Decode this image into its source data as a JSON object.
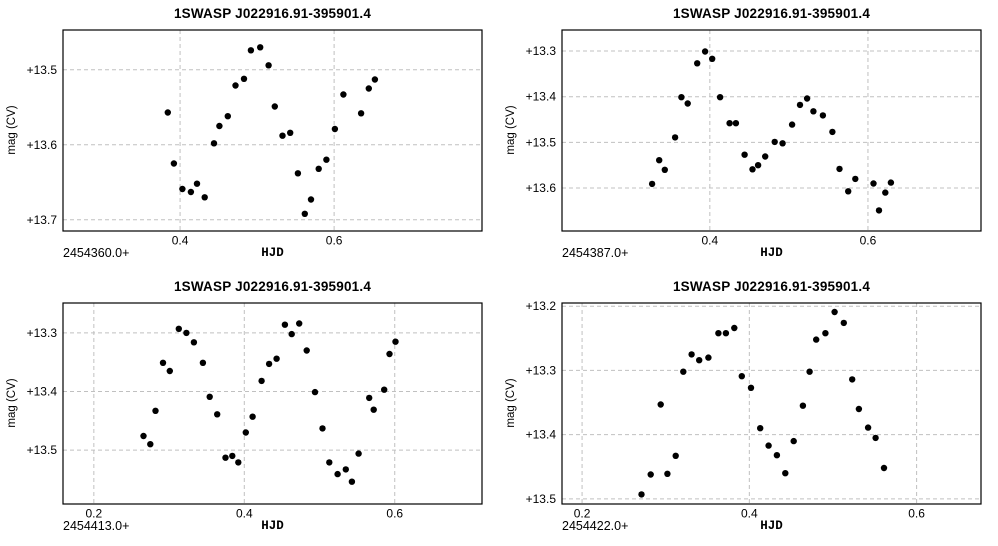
{
  "colors": {
    "background": "#ffffff",
    "point": "#000000",
    "grid": "#c0c0c0",
    "frame": "#000000",
    "text": "#000000"
  },
  "chart_data": [
    {
      "type": "scatter",
      "title": "1SWASP J022916.91-395901.4",
      "xlabel": "HJD",
      "ylabel": "mag (CV)",
      "x_base_label": "2454360.0+",
      "y_inverted": true,
      "xlim": [
        0.248,
        0.792
      ],
      "ylim": [
        13.447,
        13.715
      ],
      "xticks": [
        0.4,
        0.6
      ],
      "xtick_labels": [
        "0.4",
        "0.6"
      ],
      "yticks": [
        13.5,
        13.6,
        13.7
      ],
      "ytick_labels": [
        "+13.5",
        "+13.6",
        "+13.7"
      ],
      "grid": "dashed",
      "points": [
        [
          0.384,
          13.557
        ],
        [
          0.392,
          13.625
        ],
        [
          0.403,
          13.659
        ],
        [
          0.414,
          13.663
        ],
        [
          0.422,
          13.652
        ],
        [
          0.432,
          13.67
        ],
        [
          0.444,
          13.598
        ],
        [
          0.451,
          13.575
        ],
        [
          0.462,
          13.562
        ],
        [
          0.472,
          13.521
        ],
        [
          0.483,
          13.512
        ],
        [
          0.492,
          13.474
        ],
        [
          0.504,
          13.47
        ],
        [
          0.515,
          13.494
        ],
        [
          0.523,
          13.549
        ],
        [
          0.533,
          13.588
        ],
        [
          0.543,
          13.584
        ],
        [
          0.553,
          13.638
        ],
        [
          0.562,
          13.692
        ],
        [
          0.57,
          13.673
        ],
        [
          0.58,
          13.632
        ],
        [
          0.59,
          13.62
        ],
        [
          0.601,
          13.579
        ],
        [
          0.612,
          13.533
        ],
        [
          0.635,
          13.558
        ],
        [
          0.645,
          13.525
        ],
        [
          0.653,
          13.513
        ]
      ]
    },
    {
      "type": "scatter",
      "title": "1SWASP J022916.91-395901.4",
      "xlabel": "HJD",
      "ylabel": "mag (CV)",
      "x_base_label": "2454387.0+",
      "y_inverted": true,
      "xlim": [
        0.213,
        0.743
      ],
      "ylim": [
        13.254,
        13.694
      ],
      "xticks": [
        0.4,
        0.6
      ],
      "xtick_labels": [
        "0.4",
        "0.6"
      ],
      "yticks": [
        13.3,
        13.4,
        13.5,
        13.6
      ],
      "ytick_labels": [
        "+13.3",
        "+13.4",
        "+13.5",
        "+13.6"
      ],
      "grid": "dashed",
      "points": [
        [
          0.327,
          13.591
        ],
        [
          0.336,
          13.539
        ],
        [
          0.343,
          13.56
        ],
        [
          0.356,
          13.489
        ],
        [
          0.364,
          13.401
        ],
        [
          0.372,
          13.415
        ],
        [
          0.384,
          13.327
        ],
        [
          0.394,
          13.301
        ],
        [
          0.403,
          13.317
        ],
        [
          0.413,
          13.401
        ],
        [
          0.425,
          13.458
        ],
        [
          0.433,
          13.458
        ],
        [
          0.444,
          13.527
        ],
        [
          0.454,
          13.559
        ],
        [
          0.461,
          13.55
        ],
        [
          0.47,
          13.531
        ],
        [
          0.482,
          13.499
        ],
        [
          0.492,
          13.502
        ],
        [
          0.504,
          13.461
        ],
        [
          0.514,
          13.418
        ],
        [
          0.523,
          13.404
        ],
        [
          0.531,
          13.432
        ],
        [
          0.543,
          13.441
        ],
        [
          0.555,
          13.477
        ],
        [
          0.564,
          13.558
        ],
        [
          0.575,
          13.607
        ],
        [
          0.584,
          13.58
        ],
        [
          0.607,
          13.59
        ],
        [
          0.614,
          13.649
        ],
        [
          0.622,
          13.61
        ],
        [
          0.629,
          13.588
        ]
      ]
    },
    {
      "type": "scatter",
      "title": "1SWASP J022916.91-395901.4",
      "xlabel": "HJD",
      "ylabel": "mag (CV)",
      "x_base_label": "2454413.0+",
      "y_inverted": true,
      "xlim": [
        0.159,
        0.716
      ],
      "ylim": [
        13.249,
        13.592
      ],
      "xticks": [
        0.2,
        0.4,
        0.6
      ],
      "xtick_labels": [
        "0.2",
        "0.4",
        "0.6"
      ],
      "yticks": [
        13.3,
        13.4,
        13.5
      ],
      "ytick_labels": [
        "+13.3",
        "+13.4",
        "+13.5"
      ],
      "grid": "dashed",
      "points": [
        [
          0.266,
          13.476
        ],
        [
          0.275,
          13.49
        ],
        [
          0.282,
          13.433
        ],
        [
          0.292,
          13.351
        ],
        [
          0.301,
          13.365
        ],
        [
          0.313,
          13.293
        ],
        [
          0.323,
          13.3
        ],
        [
          0.333,
          13.316
        ],
        [
          0.345,
          13.351
        ],
        [
          0.354,
          13.409
        ],
        [
          0.364,
          13.439
        ],
        [
          0.375,
          13.513
        ],
        [
          0.384,
          13.51
        ],
        [
          0.392,
          13.521
        ],
        [
          0.402,
          13.47
        ],
        [
          0.411,
          13.443
        ],
        [
          0.423,
          13.382
        ],
        [
          0.433,
          13.353
        ],
        [
          0.443,
          13.344
        ],
        [
          0.454,
          13.286
        ],
        [
          0.463,
          13.302
        ],
        [
          0.473,
          13.284
        ],
        [
          0.483,
          13.33
        ],
        [
          0.494,
          13.401
        ],
        [
          0.504,
          13.463
        ],
        [
          0.513,
          13.521
        ],
        [
          0.524,
          13.541
        ],
        [
          0.535,
          13.533
        ],
        [
          0.543,
          13.554
        ],
        [
          0.552,
          13.506
        ],
        [
          0.566,
          13.411
        ],
        [
          0.572,
          13.431
        ],
        [
          0.586,
          13.397
        ],
        [
          0.593,
          13.336
        ],
        [
          0.601,
          13.315
        ]
      ]
    },
    {
      "type": "scatter",
      "title": "1SWASP J022916.91-395901.4",
      "xlabel": "HJD",
      "ylabel": "mag (CV)",
      "x_base_label": "2454422.0+",
      "y_inverted": true,
      "xlim": [
        0.176,
        0.677
      ],
      "ylim": [
        13.195,
        13.508
      ],
      "xticks": [
        0.2,
        0.4,
        0.6
      ],
      "xtick_labels": [
        "0.2",
        "0.4",
        "0.6"
      ],
      "yticks": [
        13.2,
        13.3,
        13.4,
        13.5
      ],
      "ytick_labels": [
        "+13.2",
        "+13.3",
        "+13.4",
        "+13.5"
      ],
      "grid": "dashed",
      "points": [
        [
          0.271,
          13.493
        ],
        [
          0.282,
          13.462
        ],
        [
          0.294,
          13.353
        ],
        [
          0.302,
          13.461
        ],
        [
          0.312,
          13.433
        ],
        [
          0.321,
          13.302
        ],
        [
          0.331,
          13.275
        ],
        [
          0.34,
          13.284
        ],
        [
          0.351,
          13.28
        ],
        [
          0.363,
          13.242
        ],
        [
          0.372,
          13.242
        ],
        [
          0.382,
          13.234
        ],
        [
          0.391,
          13.309
        ],
        [
          0.402,
          13.327
        ],
        [
          0.413,
          13.39
        ],
        [
          0.423,
          13.417
        ],
        [
          0.433,
          13.432
        ],
        [
          0.443,
          13.46
        ],
        [
          0.453,
          13.41
        ],
        [
          0.464,
          13.355
        ],
        [
          0.472,
          13.302
        ],
        [
          0.48,
          13.252
        ],
        [
          0.491,
          13.242
        ],
        [
          0.502,
          13.209
        ],
        [
          0.513,
          13.226
        ],
        [
          0.523,
          13.314
        ],
        [
          0.531,
          13.36
        ],
        [
          0.542,
          13.389
        ],
        [
          0.551,
          13.405
        ],
        [
          0.561,
          13.452
        ]
      ]
    }
  ]
}
